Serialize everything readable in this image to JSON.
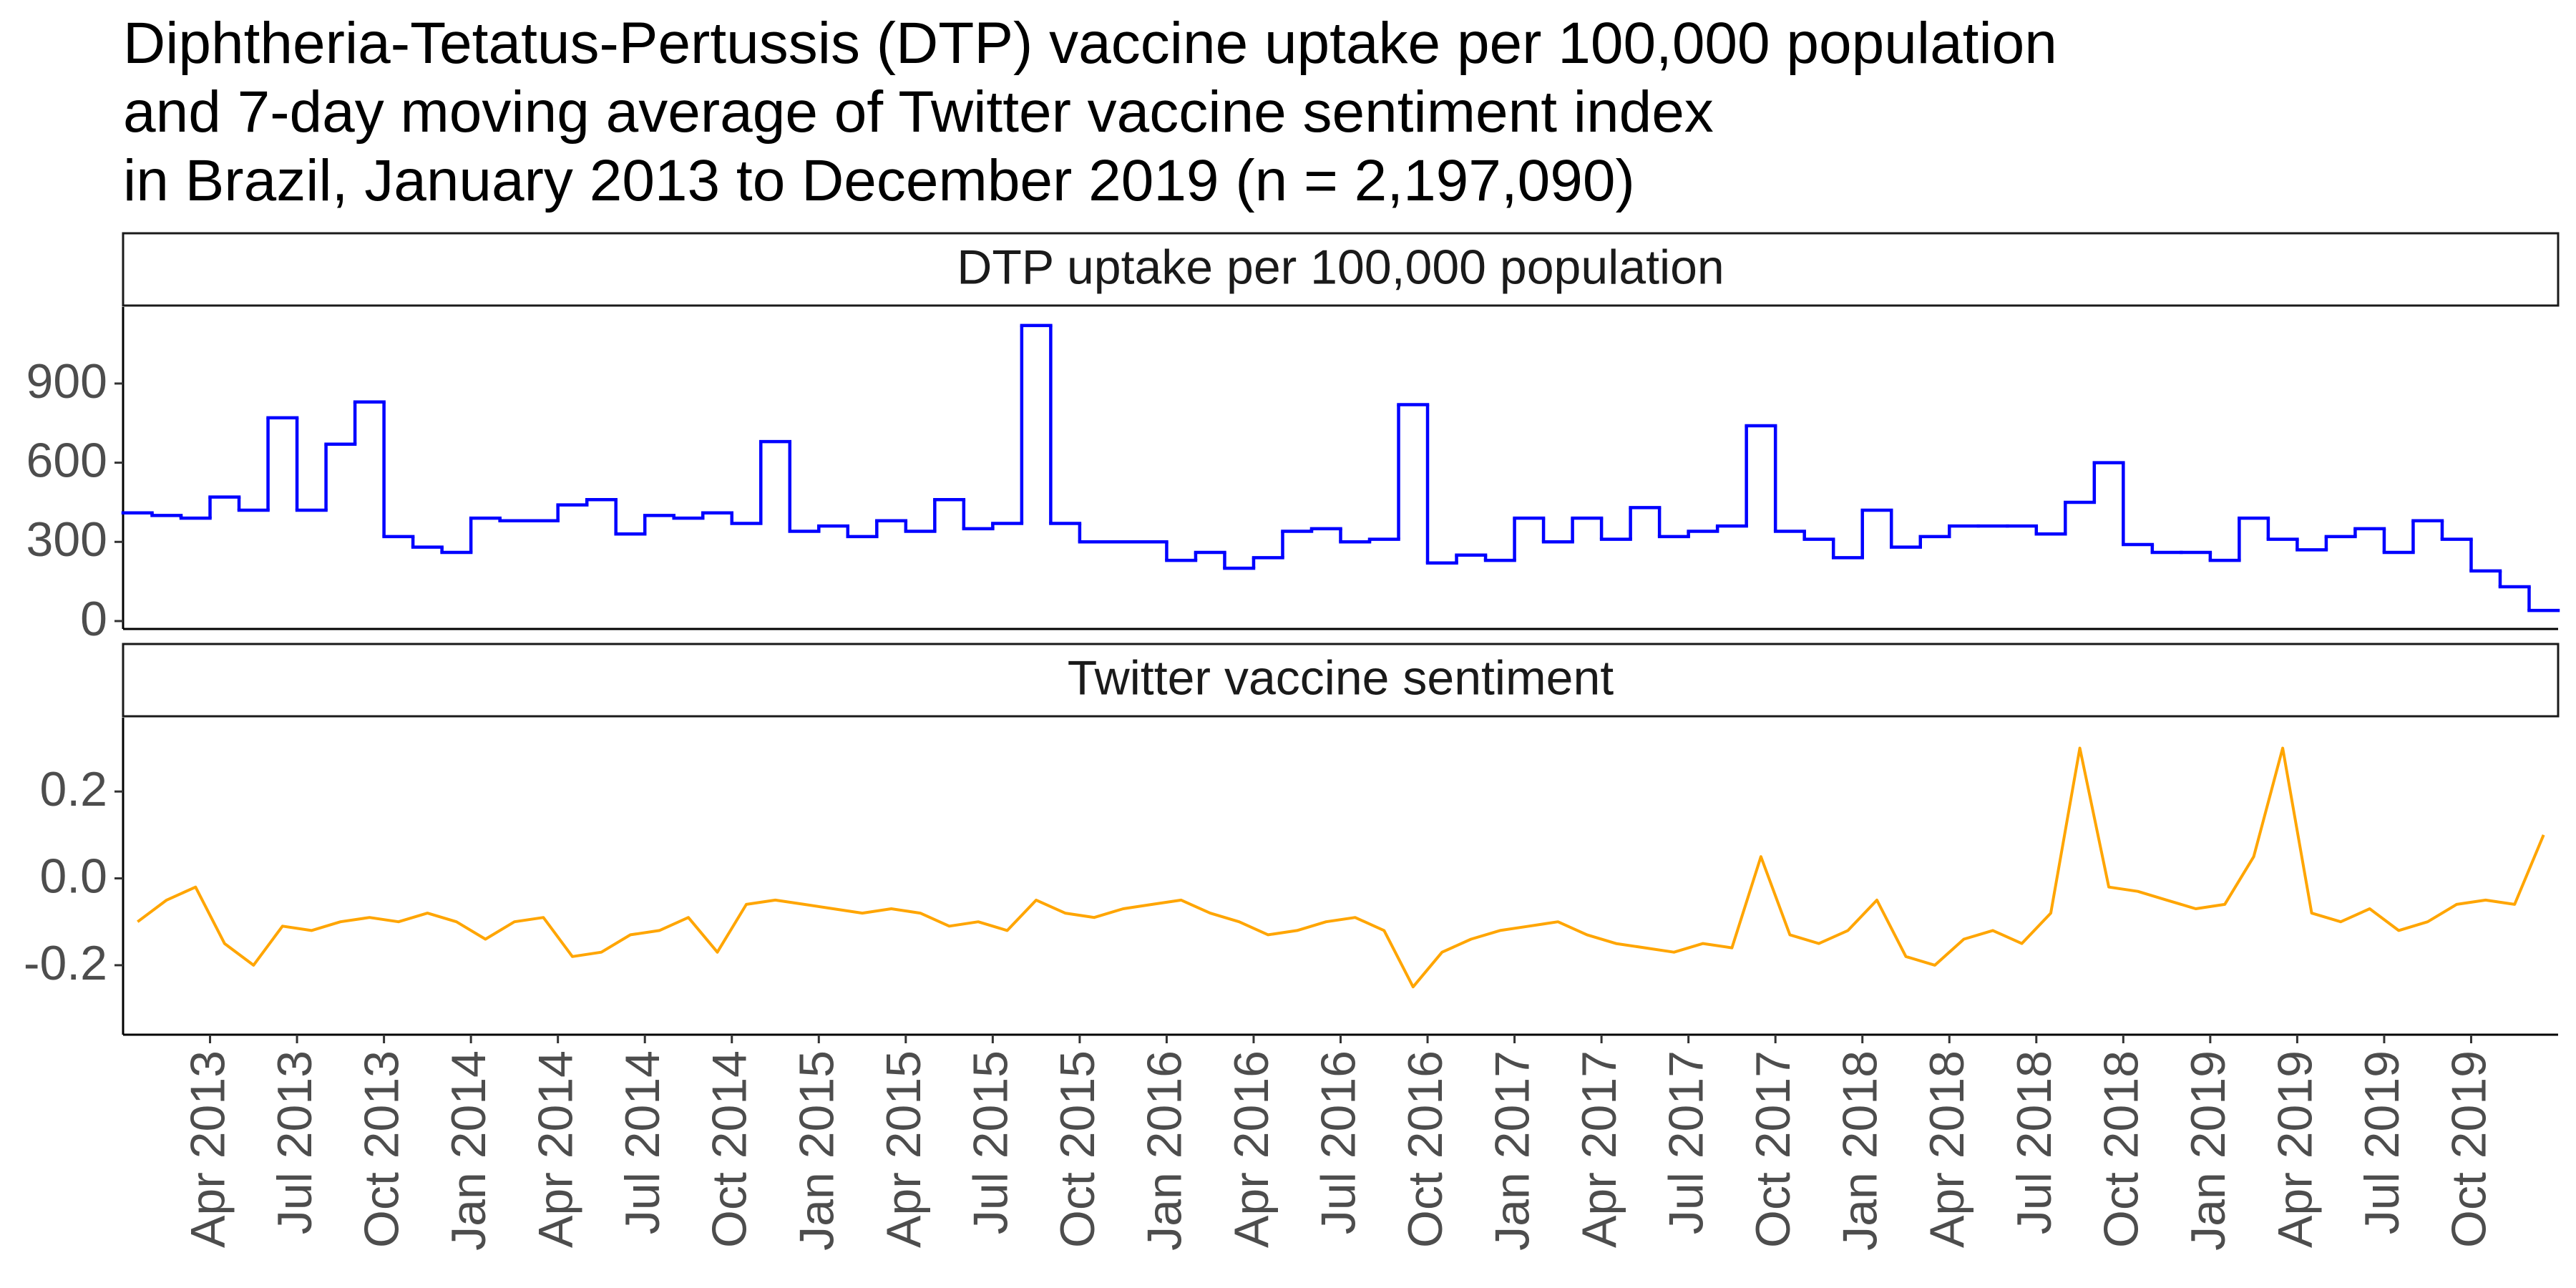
{
  "title": [
    "Diphtheria-Tetatus-Pertussis (DTP) vaccine uptake per 100,000 population",
    "and 7-day moving average of Twitter vaccine sentiment index",
    "in Brazil, January 2013 to December 2019 (n = 2,197,090)"
  ],
  "chart_data": [
    {
      "type": "step",
      "title": "DTP uptake per 100,000 population",
      "color": "#0000ff",
      "x": [
        "2013-01",
        "2013-02",
        "2013-03",
        "2013-04",
        "2013-05",
        "2013-06",
        "2013-07",
        "2013-08",
        "2013-09",
        "2013-10",
        "2013-11",
        "2013-12",
        "2014-01",
        "2014-02",
        "2014-03",
        "2014-04",
        "2014-05",
        "2014-06",
        "2014-07",
        "2014-08",
        "2014-09",
        "2014-10",
        "2014-11",
        "2014-12",
        "2015-01",
        "2015-02",
        "2015-03",
        "2015-04",
        "2015-05",
        "2015-06",
        "2015-07",
        "2015-08",
        "2015-09",
        "2015-10",
        "2015-11",
        "2015-12",
        "2016-01",
        "2016-02",
        "2016-03",
        "2016-04",
        "2016-05",
        "2016-06",
        "2016-07",
        "2016-08",
        "2016-09",
        "2016-10",
        "2016-11",
        "2016-12",
        "2017-01",
        "2017-02",
        "2017-03",
        "2017-04",
        "2017-05",
        "2017-06",
        "2017-07",
        "2017-08",
        "2017-09",
        "2017-10",
        "2017-11",
        "2017-12",
        "2018-01",
        "2018-02",
        "2018-03",
        "2018-04",
        "2018-05",
        "2018-06",
        "2018-07",
        "2018-08",
        "2018-09",
        "2018-10",
        "2018-11",
        "2018-12",
        "2019-01",
        "2019-02",
        "2019-03",
        "2019-04",
        "2019-05",
        "2019-06",
        "2019-07",
        "2019-08",
        "2019-09",
        "2019-10",
        "2019-11",
        "2019-12"
      ],
      "values": [
        410,
        400,
        390,
        470,
        420,
        770,
        420,
        670,
        830,
        320,
        280,
        260,
        390,
        380,
        380,
        440,
        460,
        330,
        400,
        390,
        410,
        370,
        680,
        340,
        360,
        320,
        380,
        340,
        460,
        350,
        370,
        1120,
        370,
        300,
        300,
        300,
        230,
        260,
        200,
        240,
        340,
        350,
        300,
        310,
        820,
        220,
        250,
        230,
        390,
        300,
        390,
        310,
        430,
        320,
        340,
        360,
        740,
        340,
        310,
        240,
        420,
        280,
        320,
        360,
        360,
        360,
        330,
        450,
        600,
        290,
        260,
        260,
        230,
        390,
        310,
        270,
        320,
        350,
        260,
        380,
        310,
        190,
        130,
        40
      ],
      "xlim": [
        "2013-01",
        "2020-01"
      ],
      "ylim": [
        -30,
        1190
      ],
      "yticks": [
        0,
        300,
        600,
        900
      ]
    },
    {
      "type": "line",
      "title": "Twitter vaccine sentiment",
      "color": "#ffa500",
      "x": [
        "2013-01",
        "2013-02",
        "2013-03",
        "2013-04",
        "2013-05",
        "2013-06",
        "2013-07",
        "2013-08",
        "2013-09",
        "2013-10",
        "2013-11",
        "2013-12",
        "2014-01",
        "2014-02",
        "2014-03",
        "2014-04",
        "2014-05",
        "2014-06",
        "2014-07",
        "2014-08",
        "2014-09",
        "2014-10",
        "2014-11",
        "2014-12",
        "2015-01",
        "2015-02",
        "2015-03",
        "2015-04",
        "2015-05",
        "2015-06",
        "2015-07",
        "2015-08",
        "2015-09",
        "2015-10",
        "2015-11",
        "2015-12",
        "2016-01",
        "2016-02",
        "2016-03",
        "2016-04",
        "2016-05",
        "2016-06",
        "2016-07",
        "2016-08",
        "2016-09",
        "2016-10",
        "2016-11",
        "2016-12",
        "2017-01",
        "2017-02",
        "2017-03",
        "2017-04",
        "2017-05",
        "2017-06",
        "2017-07",
        "2017-08",
        "2017-09",
        "2017-10",
        "2017-11",
        "2017-12",
        "2018-01",
        "2018-02",
        "2018-03",
        "2018-04",
        "2018-05",
        "2018-06",
        "2018-07",
        "2018-08",
        "2018-09",
        "2018-10",
        "2018-11",
        "2018-12",
        "2019-01",
        "2019-02",
        "2019-03",
        "2019-04",
        "2019-05",
        "2019-06",
        "2019-07",
        "2019-08",
        "2019-09",
        "2019-10",
        "2019-11",
        "2019-12"
      ],
      "values": [
        -0.1,
        -0.05,
        -0.02,
        -0.15,
        -0.2,
        -0.11,
        -0.12,
        -0.1,
        -0.09,
        -0.1,
        -0.08,
        -0.1,
        -0.14,
        -0.1,
        -0.09,
        -0.18,
        -0.17,
        -0.13,
        -0.12,
        -0.09,
        -0.17,
        -0.06,
        -0.05,
        -0.06,
        -0.07,
        -0.08,
        -0.07,
        -0.08,
        -0.11,
        -0.1,
        -0.12,
        -0.05,
        -0.08,
        -0.09,
        -0.07,
        -0.06,
        -0.05,
        -0.08,
        -0.1,
        -0.13,
        -0.12,
        -0.1,
        -0.09,
        -0.12,
        -0.25,
        -0.17,
        -0.14,
        -0.12,
        -0.11,
        -0.1,
        -0.13,
        -0.15,
        -0.16,
        -0.17,
        -0.15,
        -0.16,
        0.05,
        -0.13,
        -0.15,
        -0.12,
        -0.05,
        -0.18,
        -0.2,
        -0.14,
        -0.12,
        -0.15,
        -0.08,
        0.3,
        -0.02,
        -0.03,
        -0.05,
        -0.07,
        -0.06,
        0.05,
        0.3,
        -0.08,
        -0.1,
        -0.07,
        -0.12,
        -0.1,
        -0.06,
        -0.05,
        -0.06,
        0.1
      ],
      "xlim": [
        "2013-01",
        "2020-01"
      ],
      "xticks": [
        {
          "value": "2013-04",
          "label": "Apr 2013"
        },
        {
          "value": "2013-07",
          "label": "Jul 2013"
        },
        {
          "value": "2013-10",
          "label": "Oct 2013"
        },
        {
          "value": "2014-01",
          "label": "Jan 2014"
        },
        {
          "value": "2014-04",
          "label": "Apr 2014"
        },
        {
          "value": "2014-07",
          "label": "Jul 2014"
        },
        {
          "value": "2014-10",
          "label": "Oct 2014"
        },
        {
          "value": "2015-01",
          "label": "Jan 2015"
        },
        {
          "value": "2015-04",
          "label": "Apr 2015"
        },
        {
          "value": "2015-07",
          "label": "Jul 2015"
        },
        {
          "value": "2015-10",
          "label": "Oct 2015"
        },
        {
          "value": "2016-01",
          "label": "Jan 2016"
        },
        {
          "value": "2016-04",
          "label": "Apr 2016"
        },
        {
          "value": "2016-07",
          "label": "Jul 2016"
        },
        {
          "value": "2016-10",
          "label": "Oct 2016"
        },
        {
          "value": "2017-01",
          "label": "Jan 2017"
        },
        {
          "value": "2017-04",
          "label": "Apr 2017"
        },
        {
          "value": "2017-07",
          "label": "Jul 2017"
        },
        {
          "value": "2017-10",
          "label": "Oct 2017"
        },
        {
          "value": "2018-01",
          "label": "Jan 2018"
        },
        {
          "value": "2018-04",
          "label": "Apr 2018"
        },
        {
          "value": "2018-07",
          "label": "Jul 2018"
        },
        {
          "value": "2018-10",
          "label": "Oct 2018"
        },
        {
          "value": "2019-01",
          "label": "Jan 2019"
        },
        {
          "value": "2019-04",
          "label": "Apr 2019"
        },
        {
          "value": "2019-07",
          "label": "Jul 2019"
        },
        {
          "value": "2019-10",
          "label": "Oct 2019"
        }
      ],
      "ylim": [
        -0.36,
        0.37
      ],
      "yticks": [
        -0.2,
        {
          "value": 0,
          "label": "0.0"
        },
        0.2
      ]
    }
  ]
}
